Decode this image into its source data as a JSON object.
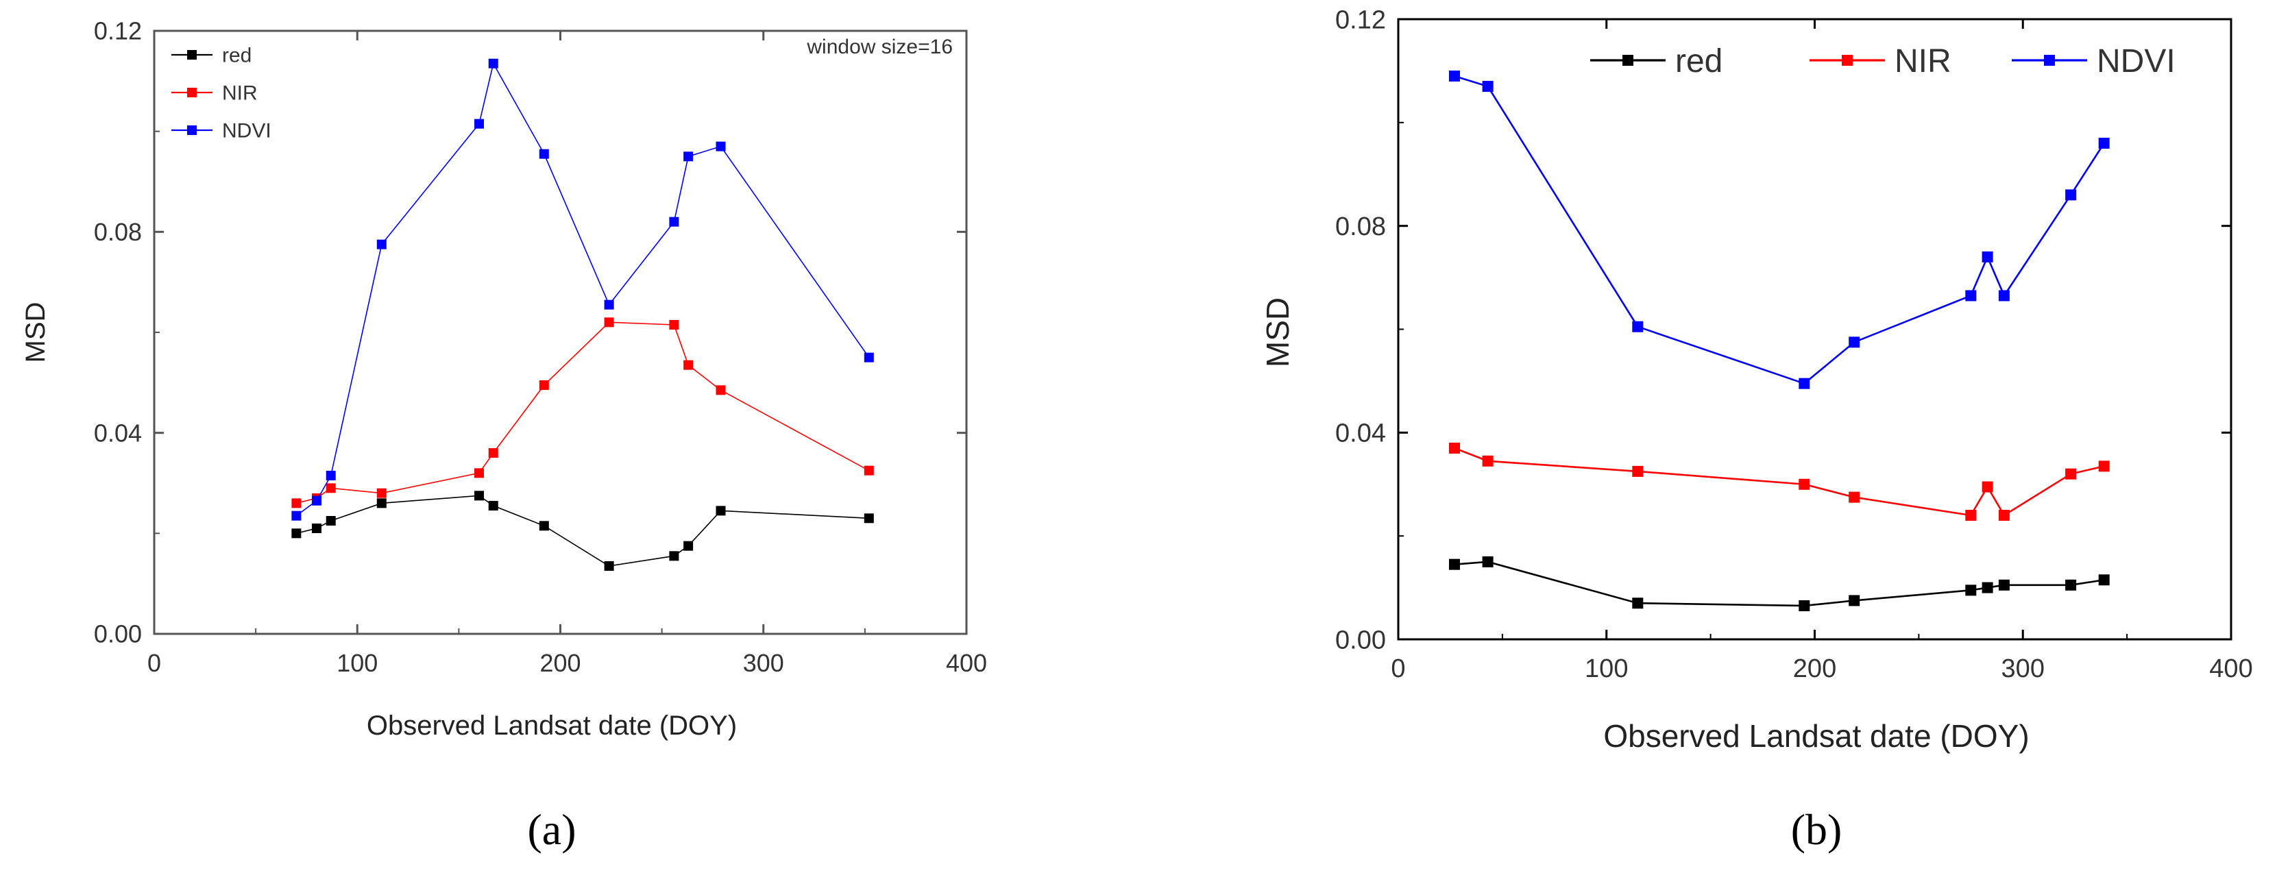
{
  "chart_data": [
    {
      "panel_label": "(a)",
      "type": "line",
      "annotation": "window size=16",
      "xlabel": "Observed Landsat date (DOY)",
      "ylabel": "MSD",
      "xlim": [
        0,
        400
      ],
      "ylim": [
        0,
        0.12
      ],
      "xticks": [
        0,
        100,
        200,
        300,
        400
      ],
      "yticks": [
        0.0,
        0.04,
        0.08,
        0.12
      ],
      "xtick_labels": [
        "0",
        "100",
        "200",
        "300",
        "400"
      ],
      "ytick_labels": [
        "0.00",
        "0.04",
        "0.08",
        "0.12"
      ],
      "legend_position": "top-left",
      "series": [
        {
          "name": "red",
          "color": "#000000",
          "x": [
            70,
            80,
            87,
            112,
            160,
            167,
            192,
            224,
            256,
            263,
            279,
            352
          ],
          "y": [
            0.02,
            0.021,
            0.0225,
            0.026,
            0.0275,
            0.0255,
            0.0215,
            0.0135,
            0.0155,
            0.0175,
            0.0245,
            0.023
          ]
        },
        {
          "name": "NIR",
          "color": "#ff0000",
          "x": [
            70,
            80,
            87,
            112,
            160,
            167,
            192,
            224,
            256,
            263,
            279,
            352
          ],
          "y": [
            0.026,
            0.027,
            0.029,
            0.028,
            0.032,
            0.036,
            0.0495,
            0.062,
            0.0615,
            0.0535,
            0.0485,
            0.0325
          ]
        },
        {
          "name": "NDVI",
          "color": "#0000ff",
          "x": [
            70,
            80,
            87,
            112,
            160,
            167,
            192,
            224,
            256,
            263,
            279,
            352
          ],
          "y": [
            0.0235,
            0.0265,
            0.0315,
            0.0775,
            0.1015,
            0.1135,
            0.0955,
            0.0655,
            0.082,
            0.095,
            0.097,
            0.055
          ]
        }
      ]
    },
    {
      "panel_label": "(b)",
      "type": "line",
      "xlabel": "Observed Landsat date (DOY)",
      "ylabel": "MSD",
      "xlim": [
        0,
        400
      ],
      "ylim": [
        0,
        0.12
      ],
      "xticks": [
        0,
        100,
        200,
        300,
        400
      ],
      "yticks": [
        0.0,
        0.04,
        0.08,
        0.12
      ],
      "xtick_labels": [
        "0",
        "100",
        "200",
        "300",
        "400"
      ],
      "ytick_labels": [
        "0.00",
        "0.04",
        "0.08",
        "0.12"
      ],
      "legend_position": "top",
      "series": [
        {
          "name": "red",
          "color": "#000000",
          "x": [
            27,
            43,
            115,
            195,
            219,
            275,
            283,
            291,
            323,
            339
          ],
          "y": [
            0.0145,
            0.015,
            0.007,
            0.0065,
            0.0075,
            0.0095,
            0.01,
            0.0105,
            0.0105,
            0.0115
          ]
        },
        {
          "name": "NIR",
          "color": "#ff0000",
          "x": [
            27,
            43,
            115,
            195,
            219,
            275,
            283,
            291,
            323,
            339
          ],
          "y": [
            0.037,
            0.0345,
            0.0325,
            0.03,
            0.0275,
            0.024,
            0.0295,
            0.024,
            0.032,
            0.0335
          ]
        },
        {
          "name": "NDVI",
          "color": "#0000ff",
          "x": [
            27,
            43,
            115,
            195,
            219,
            275,
            283,
            291,
            323,
            339
          ],
          "y": [
            0.109,
            0.107,
            0.0605,
            0.0495,
            0.0575,
            0.0665,
            0.074,
            0.0665,
            0.086,
            0.096
          ]
        }
      ]
    }
  ]
}
